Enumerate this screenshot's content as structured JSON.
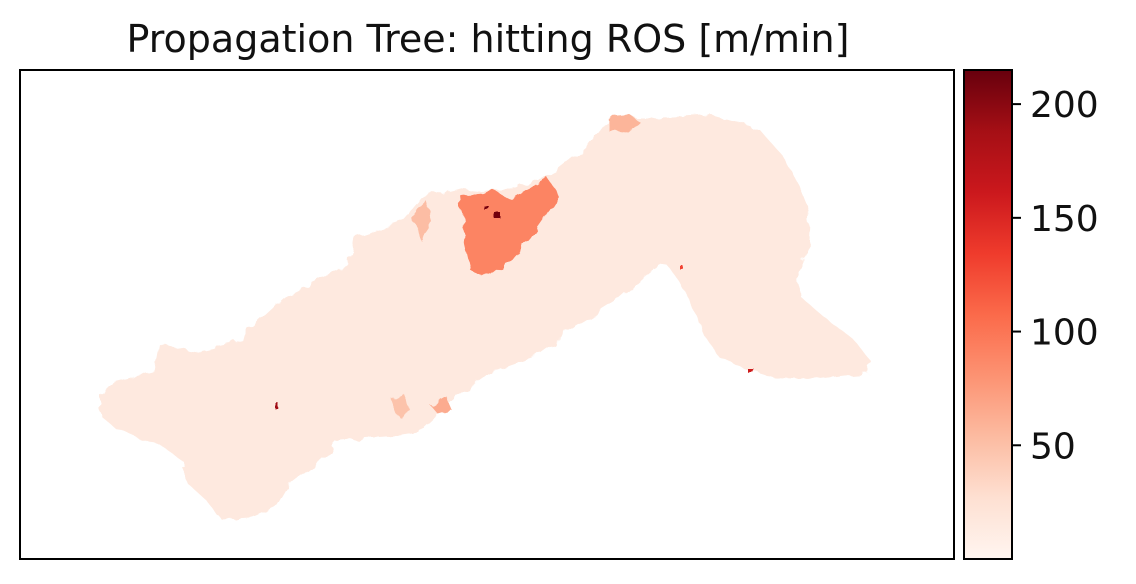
{
  "chart_data": {
    "type": "heatmap",
    "title": "Propagation Tree: hitting ROS [m/min]",
    "xlabel": "",
    "ylabel": "",
    "colorbar": {
      "colormap": "Reds",
      "range": [
        0,
        215
      ],
      "ticks": [
        50,
        100,
        150,
        200
      ],
      "tick_labels": [
        "50",
        "100",
        "150",
        "200"
      ],
      "stops": [
        "#fff5f0",
        "#fee0d2",
        "#fcbba1",
        "#fc9272",
        "#fb6a4a",
        "#ef3b2c",
        "#cb181d",
        "#a50f15",
        "#67000d"
      ]
    },
    "map_axes": {
      "xticks": false,
      "yticks": false,
      "grid": false
    },
    "color_regions": [
      {
        "region": "burned area (most)",
        "value_approx": 15
      },
      {
        "region": "north-central slope patch",
        "value_approx": 90
      },
      {
        "region": "peak cells",
        "value_approx": 210
      }
    ]
  }
}
